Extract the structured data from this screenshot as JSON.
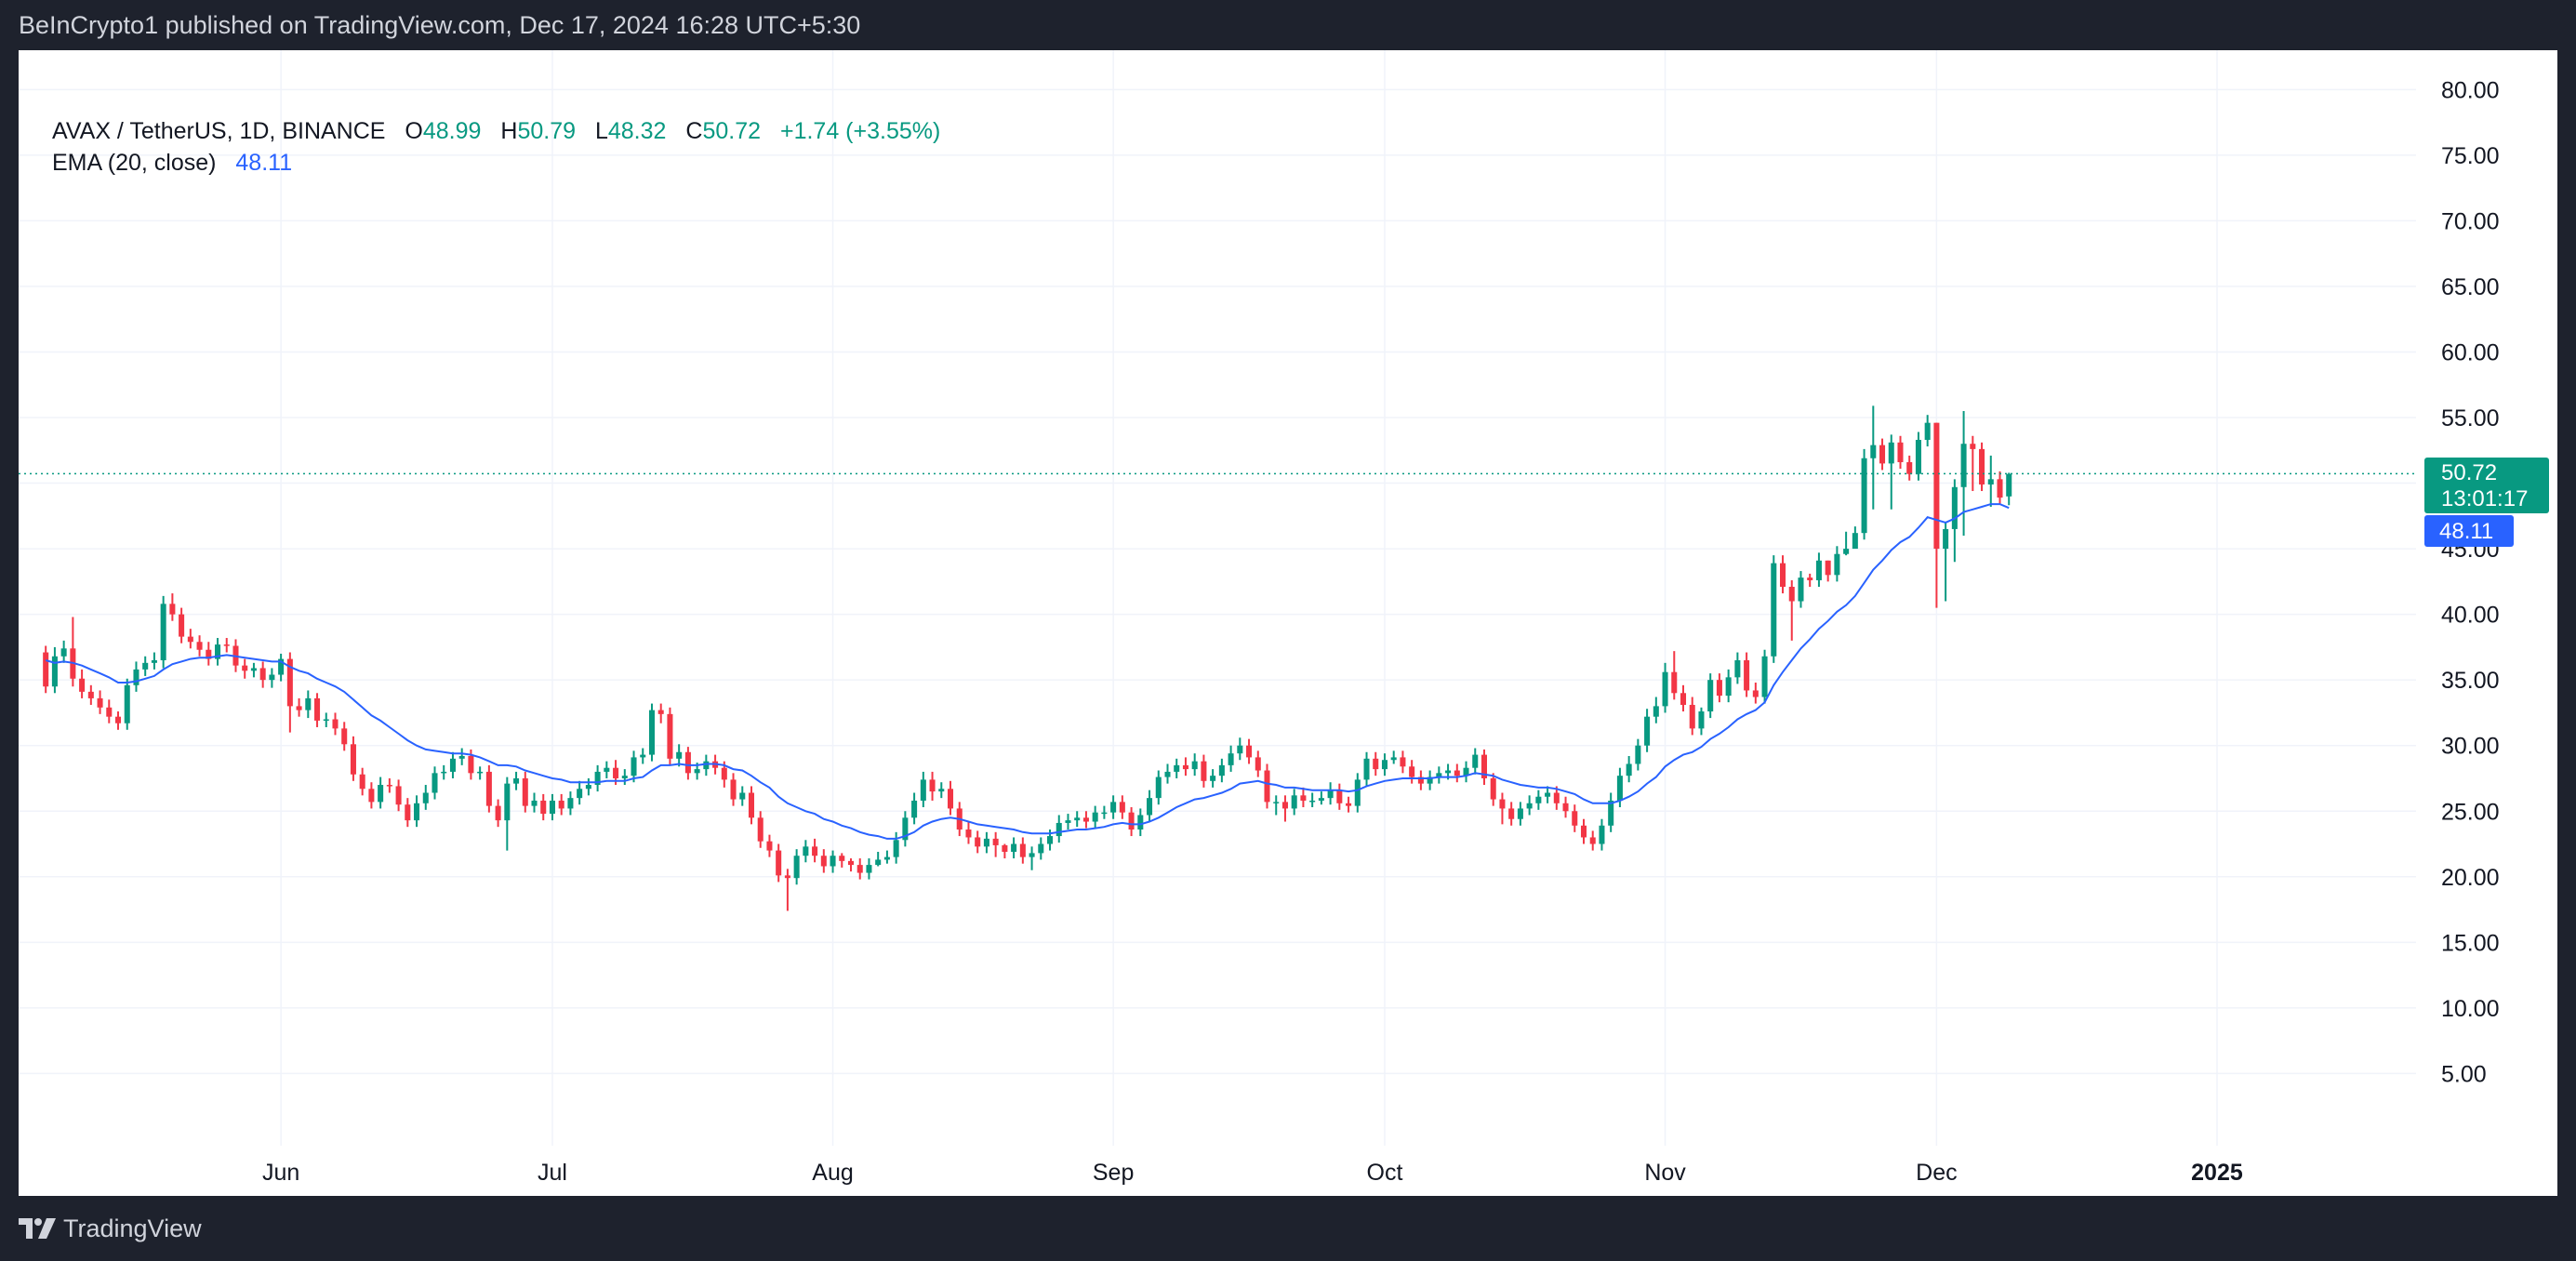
{
  "header": {
    "published_text": "BeInCrypto1 published on TradingView.com, Dec 17, 2024 16:28 UTC+5:30"
  },
  "footer": {
    "brand": "TradingView"
  },
  "legend": {
    "symbol": "AVAX / TetherUS, 1D, BINANCE",
    "open_label": "O",
    "open_value": "48.99",
    "high_label": "H",
    "high_value": "50.79",
    "low_label": "L",
    "low_value": "48.32",
    "close_label": "C",
    "close_value": "50.72",
    "change": "+1.74 (+3.55%)",
    "ema_label": "EMA (20, close)",
    "ema_value": "48.11"
  },
  "price_tag": {
    "price": "50.72",
    "countdown": "13:01:17",
    "ema": "48.11"
  },
  "colors": {
    "up": "#089981",
    "down": "#f23645",
    "ema": "#2962ff",
    "grid": "#f0f3fa",
    "axis_text": "#131722"
  },
  "chart_data": {
    "type": "candlestick",
    "title": "AVAX / TetherUS, 1D, BINANCE",
    "x_ticks": [
      {
        "label": "Jun",
        "day": 26
      },
      {
        "label": "Jul",
        "day": 56
      },
      {
        "label": "Aug",
        "day": 87
      },
      {
        "label": "Sep",
        "day": 118
      },
      {
        "label": "Oct",
        "day": 148
      },
      {
        "label": "Nov",
        "day": 179
      },
      {
        "label": "Dec",
        "day": 209
      },
      {
        "label": "2025",
        "day": 240
      }
    ],
    "y_ticks": [
      "5.00",
      "10.00",
      "15.00",
      "20.00",
      "25.00",
      "30.00",
      "35.00",
      "40.00",
      "45.00",
      "50.00",
      "55.00",
      "60.00",
      "65.00",
      "70.00",
      "75.00",
      "80.00"
    ],
    "ylim": [
      -0.5,
      83
    ],
    "xlim": [
      -3,
      262
    ],
    "last_price": 50.72,
    "ema_period": 20,
    "ema_last": 48.11,
    "candles_start": "2024-05-06",
    "close": [
      34.5,
      36.8,
      37.4,
      35.1,
      34.1,
      33.6,
      32.9,
      32.2,
      31.7,
      34.6,
      35.8,
      36.3,
      36.5,
      40.8,
      40.0,
      38.3,
      37.9,
      37.3,
      36.6,
      37.7,
      37.6,
      36.1,
      35.7,
      35.9,
      35.0,
      35.4,
      36.6,
      33.0,
      32.7,
      33.6,
      31.9,
      32.0,
      31.3,
      30.1,
      27.8,
      26.7,
      25.7,
      27.0,
      26.9,
      25.5,
      24.3,
      25.6,
      26.4,
      27.9,
      28.0,
      29.0,
      29.2,
      27.9,
      28.0,
      25.4,
      24.3,
      27.1,
      27.5,
      25.4,
      25.8,
      24.8,
      25.8,
      25.2,
      26.0,
      26.7,
      27.0,
      28.0,
      28.3,
      27.5,
      27.7,
      29.1,
      29.3,
      32.7,
      32.4,
      29.0,
      29.5,
      27.9,
      28.2,
      28.8,
      28.3,
      27.4,
      25.9,
      26.4,
      24.5,
      22.7,
      22.0,
      20.1,
      19.9,
      21.6,
      22.3,
      21.6,
      20.8,
      21.6,
      21.2,
      20.9,
      20.3,
      20.9,
      21.3,
      21.5,
      22.8,
      24.5,
      25.8,
      27.4,
      26.5,
      26.7,
      25.2,
      23.6,
      23.0,
      22.3,
      22.9,
      22.4,
      21.9,
      22.5,
      21.5,
      21.8,
      22.5,
      23.1,
      24.1,
      24.3,
      24.5,
      24.2,
      24.9,
      24.9,
      25.7,
      24.9,
      23.6,
      24.7,
      26.0,
      27.6,
      28.0,
      28.5,
      28.2,
      28.8,
      27.3,
      27.7,
      28.5,
      29.4,
      30.0,
      29.1,
      28.1,
      25.7,
      25.7,
      25.2,
      26.2,
      25.8,
      25.8,
      26.0,
      26.6,
      25.6,
      25.4,
      27.4,
      29.0,
      28.2,
      28.9,
      29.1,
      28.4,
      27.6,
      27.1,
      27.6,
      27.9,
      28.1,
      27.7,
      28.3,
      29.3,
      27.5,
      25.9,
      25.2,
      24.4,
      25.2,
      25.6,
      26.1,
      26.4,
      25.6,
      25.0,
      23.9,
      23.0,
      22.5,
      23.9,
      25.8,
      27.7,
      28.6,
      30.0,
      32.2,
      33.0,
      35.6,
      34.0,
      33.1,
      31.3,
      32.6,
      35.0,
      33.8,
      35.2,
      36.5,
      34.2,
      33.7,
      36.8,
      43.9,
      42.1,
      41.0,
      42.8,
      42.6,
      44.1,
      43.0,
      44.6,
      45.0,
      46.2,
      51.9,
      52.9,
      51.5,
      53.1,
      51.6,
      50.7,
      53.3,
      54.6,
      45.0,
      46.5,
      49.7,
      53.0,
      52.6,
      49.9,
      50.3,
      48.9,
      50.7
    ],
    "open": [
      37.1,
      34.5,
      36.8,
      37.4,
      35.1,
      34.1,
      33.6,
      32.9,
      32.2,
      31.7,
      34.6,
      35.8,
      36.3,
      36.5,
      40.8,
      40.0,
      38.3,
      37.9,
      37.3,
      36.6,
      37.7,
      37.6,
      36.1,
      35.7,
      35.9,
      35.0,
      35.4,
      36.6,
      33.0,
      32.7,
      33.6,
      31.9,
      32.0,
      31.3,
      30.1,
      27.8,
      26.7,
      25.7,
      27.0,
      26.9,
      25.5,
      24.3,
      25.6,
      26.4,
      27.9,
      28.0,
      29.0,
      29.2,
      27.9,
      28.0,
      25.4,
      24.3,
      27.1,
      27.5,
      25.4,
      25.8,
      24.8,
      25.8,
      25.2,
      26.0,
      26.7,
      27.0,
      28.0,
      28.3,
      27.5,
      27.7,
      29.1,
      29.3,
      32.7,
      32.4,
      29.0,
      29.5,
      27.9,
      28.2,
      28.8,
      28.3,
      27.4,
      25.9,
      26.4,
      24.5,
      22.7,
      22.0,
      20.1,
      19.9,
      21.6,
      22.3,
      21.6,
      20.8,
      21.6,
      21.2,
      20.9,
      20.3,
      20.9,
      21.3,
      21.5,
      22.8,
      24.5,
      25.8,
      27.4,
      26.5,
      26.7,
      25.2,
      23.6,
      23.0,
      22.3,
      22.9,
      22.4,
      21.9,
      22.5,
      21.5,
      21.8,
      22.5,
      23.1,
      24.1,
      24.3,
      24.5,
      24.2,
      24.9,
      24.9,
      25.7,
      24.9,
      23.6,
      24.7,
      26.0,
      27.6,
      28.0,
      28.5,
      28.2,
      28.8,
      27.3,
      27.7,
      28.5,
      29.4,
      30.0,
      29.1,
      28.1,
      25.7,
      25.7,
      25.2,
      26.2,
      25.8,
      25.8,
      26.0,
      26.6,
      25.6,
      25.4,
      27.4,
      29.0,
      28.2,
      28.9,
      29.1,
      28.4,
      27.6,
      27.1,
      27.6,
      27.9,
      28.1,
      27.7,
      28.3,
      29.3,
      27.5,
      25.9,
      25.2,
      24.4,
      25.2,
      25.6,
      26.1,
      26.4,
      25.6,
      25.0,
      23.9,
      23.0,
      22.5,
      23.9,
      25.8,
      27.7,
      28.6,
      30.0,
      32.2,
      33.0,
      35.6,
      34.0,
      33.1,
      31.3,
      32.6,
      35.0,
      33.8,
      35.2,
      36.5,
      34.2,
      33.7,
      36.8,
      43.9,
      42.1,
      41.0,
      42.8,
      42.6,
      44.1,
      43.0,
      44.6,
      45.0,
      46.2,
      51.9,
      52.9,
      51.5,
      53.1,
      51.6,
      50.7,
      53.3,
      54.6,
      45.0,
      46.5,
      49.7,
      53.0,
      52.6,
      49.9,
      50.3,
      48.99
    ],
    "high": [
      37.6,
      37.5,
      38.0,
      39.8,
      35.8,
      34.6,
      34.2,
      33.5,
      32.6,
      35.1,
      36.4,
      36.8,
      37.1,
      41.4,
      41.6,
      40.5,
      38.9,
      38.4,
      37.9,
      38.2,
      38.2,
      38.1,
      36.6,
      36.3,
      36.4,
      35.9,
      37.0,
      37.1,
      33.6,
      34.2,
      34.0,
      32.5,
      32.5,
      31.8,
      30.7,
      28.3,
      27.2,
      27.6,
      27.5,
      27.4,
      26.0,
      26.2,
      27.0,
      28.4,
      28.5,
      29.5,
      29.8,
      29.7,
      28.4,
      28.5,
      25.9,
      27.6,
      28.0,
      28.0,
      26.4,
      26.3,
      26.3,
      26.3,
      26.5,
      27.3,
      27.5,
      28.5,
      28.8,
      28.9,
      28.2,
      29.6,
      29.8,
      33.2,
      33.2,
      32.9,
      30.1,
      29.9,
      28.7,
      29.3,
      29.3,
      28.8,
      27.9,
      26.9,
      26.9,
      25.0,
      23.2,
      22.5,
      20.6,
      22.1,
      22.8,
      22.9,
      22.1,
      22.0,
      21.8,
      21.4,
      21.4,
      21.4,
      21.9,
      22.0,
      23.4,
      25.0,
      26.4,
      28.0,
      28.0,
      27.2,
      27.3,
      25.7,
      24.2,
      23.5,
      23.4,
      23.4,
      22.5,
      23.0,
      23.0,
      22.3,
      23.0,
      23.6,
      24.7,
      24.8,
      25.0,
      25.0,
      25.4,
      25.4,
      26.2,
      26.2,
      25.3,
      25.2,
      26.6,
      28.1,
      28.6,
      29.0,
      29.1,
      29.4,
      29.3,
      28.2,
      29.0,
      30.0,
      30.6,
      30.5,
      29.6,
      28.6,
      26.2,
      26.2,
      26.7,
      26.8,
      26.4,
      26.5,
      27.2,
      27.1,
      26.1,
      27.9,
      29.5,
      29.5,
      29.4,
      29.6,
      29.6,
      28.9,
      28.1,
      28.1,
      28.4,
      28.6,
      28.6,
      28.8,
      29.8,
      29.7,
      27.9,
      26.4,
      25.7,
      25.7,
      26.2,
      26.6,
      26.9,
      26.9,
      26.1,
      25.5,
      24.4,
      23.5,
      24.4,
      26.4,
      28.3,
      29.2,
      30.5,
      32.8,
      33.7,
      36.3,
      37.2,
      34.6,
      33.7,
      32.9,
      35.5,
      35.5,
      35.8,
      37.1,
      37.1,
      34.8,
      37.3,
      44.5,
      44.5,
      42.6,
      43.3,
      43.1,
      44.7,
      44.1,
      45.2,
      46.3,
      46.7,
      52.6,
      55.9,
      53.4,
      53.7,
      53.6,
      52.1,
      53.9,
      55.2,
      54.6,
      47.0,
      50.3,
      55.5,
      53.6,
      53.1,
      52.1,
      50.9,
      50.79
    ],
    "low": [
      34.0,
      34.0,
      36.3,
      34.5,
      33.6,
      33.1,
      32.4,
      31.7,
      31.2,
      31.2,
      34.1,
      35.3,
      35.8,
      35.9,
      39.5,
      37.8,
      37.4,
      36.8,
      36.1,
      36.1,
      37.1,
      35.6,
      35.1,
      35.2,
      34.4,
      34.4,
      34.9,
      31.0,
      32.2,
      32.1,
      31.4,
      31.4,
      30.8,
      29.6,
      27.3,
      26.2,
      25.2,
      25.2,
      26.4,
      25.0,
      23.8,
      23.8,
      25.1,
      25.9,
      27.4,
      27.5,
      28.5,
      27.4,
      27.4,
      24.9,
      23.8,
      22.0,
      26.6,
      24.9,
      24.9,
      24.3,
      24.3,
      24.7,
      24.7,
      25.5,
      26.2,
      26.5,
      27.5,
      27.0,
      27.0,
      27.2,
      28.6,
      28.8,
      31.7,
      28.5,
      28.4,
      27.4,
      27.4,
      27.7,
      27.8,
      26.8,
      25.4,
      25.4,
      24.0,
      22.2,
      21.5,
      19.6,
      17.4,
      19.4,
      21.1,
      21.1,
      20.3,
      20.3,
      20.7,
      20.4,
      19.8,
      19.8,
      20.8,
      21.0,
      21.0,
      22.3,
      24.0,
      25.3,
      25.8,
      26.0,
      24.7,
      23.1,
      22.5,
      21.8,
      21.8,
      21.5,
      21.4,
      21.4,
      21.0,
      20.5,
      21.3,
      22.0,
      22.6,
      23.6,
      23.8,
      23.7,
      23.7,
      24.4,
      24.4,
      24.4,
      23.1,
      23.1,
      24.2,
      25.5,
      27.1,
      27.5,
      27.7,
      27.7,
      26.8,
      26.8,
      27.2,
      28.0,
      28.9,
      28.6,
      27.6,
      25.2,
      24.7,
      24.2,
      24.7,
      25.3,
      25.3,
      25.5,
      25.5,
      25.1,
      24.9,
      24.9,
      26.9,
      27.7,
      27.7,
      28.6,
      27.9,
      27.1,
      26.6,
      26.6,
      27.1,
      27.4,
      27.2,
      27.2,
      27.8,
      27.0,
      25.4,
      24.0,
      23.9,
      23.9,
      24.7,
      25.1,
      25.6,
      25.1,
      24.5,
      23.4,
      22.5,
      22.0,
      22.0,
      23.4,
      25.3,
      27.2,
      28.1,
      29.5,
      31.7,
      32.5,
      33.5,
      32.6,
      30.8,
      30.8,
      32.1,
      33.3,
      33.3,
      34.7,
      33.7,
      33.2,
      33.2,
      36.3,
      41.6,
      38.0,
      40.5,
      42.1,
      42.1,
      42.5,
      42.5,
      44.5,
      45.7,
      45.7,
      48.0,
      51.0,
      48.0,
      51.1,
      50.2,
      50.2,
      52.8,
      40.5,
      41.0,
      44.0,
      46.0,
      49.4,
      49.4,
      48.2,
      48.4,
      48.32
    ],
    "ema": [
      36.5,
      36.3,
      36.4,
      36.3,
      36.1,
      35.8,
      35.5,
      35.2,
      34.8,
      34.8,
      34.9,
      35.1,
      35.3,
      35.8,
      36.2,
      36.4,
      36.6,
      36.7,
      36.7,
      36.8,
      36.9,
      36.8,
      36.7,
      36.6,
      36.5,
      36.4,
      36.4,
      36.0,
      35.7,
      35.5,
      35.1,
      34.8,
      34.5,
      34.1,
      33.5,
      32.9,
      32.3,
      31.9,
      31.4,
      30.9,
      30.4,
      30.0,
      29.7,
      29.6,
      29.5,
      29.4,
      29.4,
      29.3,
      29.1,
      28.8,
      28.5,
      28.5,
      28.4,
      28.1,
      27.9,
      27.7,
      27.5,
      27.4,
      27.2,
      27.2,
      27.2,
      27.2,
      27.3,
      27.3,
      27.3,
      27.5,
      27.6,
      28.1,
      28.5,
      28.5,
      28.6,
      28.5,
      28.5,
      28.6,
      28.6,
      28.5,
      28.2,
      28.1,
      27.7,
      27.2,
      26.8,
      26.1,
      25.6,
      25.3,
      25.0,
      24.8,
      24.4,
      24.2,
      23.9,
      23.7,
      23.4,
      23.2,
      23.1,
      22.9,
      22.9,
      23.1,
      23.4,
      23.9,
      24.2,
      24.4,
      24.5,
      24.4,
      24.2,
      24.0,
      23.9,
      23.8,
      23.7,
      23.6,
      23.4,
      23.3,
      23.3,
      23.3,
      23.4,
      23.5,
      23.6,
      23.6,
      23.7,
      23.8,
      24.0,
      24.1,
      24.0,
      24.0,
      24.2,
      24.5,
      24.9,
      25.3,
      25.6,
      25.9,
      26.0,
      26.2,
      26.4,
      26.7,
      27.1,
      27.2,
      27.3,
      27.1,
      27.0,
      26.8,
      26.8,
      26.7,
      26.6,
      26.6,
      26.6,
      26.6,
      26.5,
      26.6,
      26.9,
      27.1,
      27.3,
      27.4,
      27.5,
      27.5,
      27.5,
      27.5,
      27.6,
      27.6,
      27.6,
      27.7,
      27.9,
      27.8,
      27.7,
      27.4,
      27.2,
      27.0,
      26.9,
      26.8,
      26.8,
      26.7,
      26.5,
      26.3,
      25.9,
      25.6,
      25.6,
      25.6,
      25.8,
      26.1,
      26.5,
      27.1,
      27.6,
      28.4,
      28.9,
      29.3,
      29.5,
      29.9,
      30.5,
      30.9,
      31.4,
      32.0,
      32.4,
      32.7,
      33.3,
      34.6,
      35.6,
      36.5,
      37.4,
      38.1,
      38.9,
      39.5,
      40.2,
      40.7,
      41.4,
      42.4,
      43.4,
      44.1,
      44.9,
      45.5,
      45.9,
      46.6,
      47.4,
      47.2,
      47.0,
      47.3,
      47.8,
      48.0,
      48.2,
      48.4,
      48.4,
      48.11
    ]
  }
}
